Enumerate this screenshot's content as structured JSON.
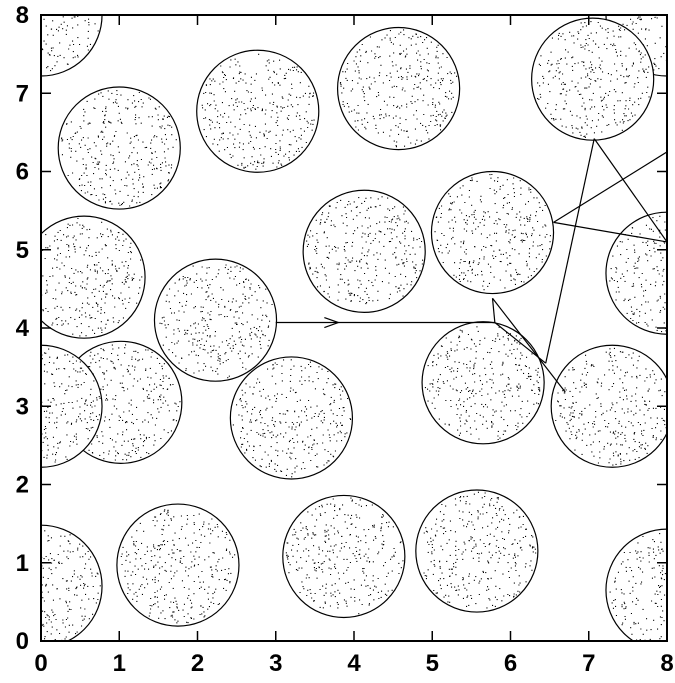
{
  "chart_data": {
    "type": "scatter",
    "title": "",
    "xlabel": "",
    "ylabel": "",
    "xlim": [
      0,
      8
    ],
    "ylim": [
      0,
      8
    ],
    "xticks": [
      "0",
      "1",
      "2",
      "3",
      "4",
      "5",
      "6",
      "7",
      "8"
    ],
    "yticks": [
      "0",
      "1",
      "2",
      "3",
      "4",
      "5",
      "6",
      "7",
      "8"
    ],
    "grid": false,
    "legend": "none",
    "marker_radius": 0.78,
    "dots_per_circle": 320,
    "circles": [
      {
        "x": 0.0,
        "y": 8.0
      },
      {
        "x": 8.0,
        "y": 8.0
      },
      {
        "x": 7.05,
        "y": 7.18
      },
      {
        "x": 4.57,
        "y": 7.06
      },
      {
        "x": 2.77,
        "y": 6.77
      },
      {
        "x": 1.0,
        "y": 6.3
      },
      {
        "x": 0.55,
        "y": 4.65
      },
      {
        "x": 4.13,
        "y": 4.98
      },
      {
        "x": 5.77,
        "y": 5.22
      },
      {
        "x": 8.0,
        "y": 4.7
      },
      {
        "x": 2.23,
        "y": 4.1
      },
      {
        "x": 1.02,
        "y": 3.05
      },
      {
        "x": 0.0,
        "y": 3.0
      },
      {
        "x": 3.2,
        "y": 2.85
      },
      {
        "x": 5.65,
        "y": 3.3
      },
      {
        "x": 7.3,
        "y": 3.0
      },
      {
        "x": 0.0,
        "y": 0.7
      },
      {
        "x": 1.75,
        "y": 0.97
      },
      {
        "x": 3.87,
        "y": 1.08
      },
      {
        "x": 5.57,
        "y": 1.15
      },
      {
        "x": 8.0,
        "y": 0.65
      }
    ],
    "trajectory": [
      {
        "x": 3.0,
        "y": 4.07
      },
      {
        "x": 5.8,
        "y": 4.07
      },
      {
        "x": 5.8,
        "y": 4.07
      },
      {
        "x": 5.8,
        "y": 4.07
      },
      {
        "x": 5.8,
        "y": 4.07
      },
      {
        "x": 5.8,
        "y": 4.07
      }
    ],
    "path_segments": [
      {
        "x1": 3.0,
        "y1": 4.07,
        "x2": 5.8,
        "y2": 4.07
      },
      {
        "x1": 5.8,
        "y1": 4.07,
        "x2": 5.77,
        "y2": 4.38
      },
      {
        "x1": 5.77,
        "y1": 4.38,
        "x2": 6.7,
        "y2": 3.18
      },
      {
        "x1": 5.8,
        "y1": 4.07,
        "x2": 6.45,
        "y2": 3.55
      },
      {
        "x1": 6.45,
        "y1": 3.55,
        "x2": 7.07,
        "y2": 6.42
      },
      {
        "x1": 7.07,
        "y1": 6.42,
        "x2": 8.0,
        "y2": 5.1
      },
      {
        "x1": 8.0,
        "y1": 5.1,
        "x2": 6.55,
        "y2": 5.35
      },
      {
        "x1": 6.55,
        "y1": 5.35,
        "x2": 8.0,
        "y2": 6.25
      }
    ],
    "arrow": {
      "x": 3.8,
      "y": 4.07,
      "direction": "right"
    }
  }
}
